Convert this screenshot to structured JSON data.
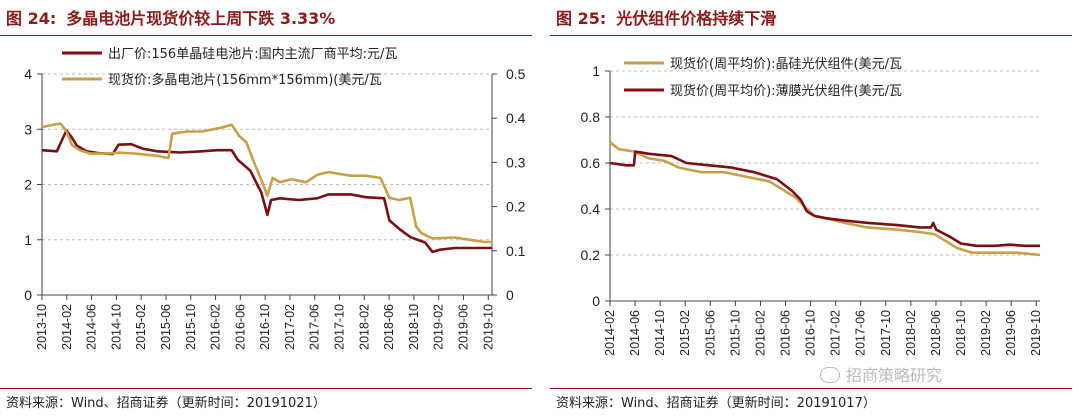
{
  "chart_data": [
    {
      "type": "line",
      "title_number": "图 24:",
      "title": "多晶电池片现货价较上周下跌 3.33%",
      "source": "资料来源：Wind、招商证券（更新时间：20191021）",
      "y_left": {
        "lim": [
          0,
          4
        ],
        "ticks": [
          "0",
          "1",
          "2",
          "3",
          "4"
        ]
      },
      "y_right": {
        "lim": [
          0,
          0.5
        ],
        "ticks": [
          "0",
          "0.1",
          "0.2",
          "0.3",
          "0.4",
          "0.5"
        ]
      },
      "x_ticks": [
        "2013-10",
        "2014-02",
        "2014-06",
        "2014-10",
        "2015-02",
        "2015-06",
        "2015-10",
        "2016-02",
        "2016-06",
        "2016-10",
        "2017-02",
        "2017-06",
        "2017-10",
        "2018-02",
        "2018-06",
        "2018-10",
        "2019-02",
        "2019-06",
        "2019-10"
      ],
      "x_range": [
        2013.75,
        2019.8
      ],
      "grid": "horizontal dashed",
      "series": [
        {
          "name": "出厂价:156单晶硅电池片:国内主流厂商平均:元/瓦",
          "axis": "left",
          "color": "#7b0d13",
          "points": [
            [
              2013.75,
              2.62
            ],
            [
              2013.95,
              2.6
            ],
            [
              2014.0,
              2.75
            ],
            [
              2014.08,
              2.98
            ],
            [
              2014.15,
              2.85
            ],
            [
              2014.22,
              2.7
            ],
            [
              2014.35,
              2.6
            ],
            [
              2014.5,
              2.57
            ],
            [
              2014.7,
              2.55
            ],
            [
              2014.78,
              2.72
            ],
            [
              2014.95,
              2.73
            ],
            [
              2015.1,
              2.65
            ],
            [
              2015.3,
              2.6
            ],
            [
              2015.6,
              2.58
            ],
            [
              2015.9,
              2.6
            ],
            [
              2016.1,
              2.62
            ],
            [
              2016.3,
              2.62
            ],
            [
              2016.38,
              2.45
            ],
            [
              2016.55,
              2.25
            ],
            [
              2016.7,
              1.85
            ],
            [
              2016.78,
              1.45
            ],
            [
              2016.83,
              1.72
            ],
            [
              2016.95,
              1.75
            ],
            [
              2017.2,
              1.72
            ],
            [
              2017.45,
              1.75
            ],
            [
              2017.6,
              1.82
            ],
            [
              2017.9,
              1.82
            ],
            [
              2018.1,
              1.77
            ],
            [
              2018.35,
              1.75
            ],
            [
              2018.42,
              1.35
            ],
            [
              2018.55,
              1.2
            ],
            [
              2018.7,
              1.05
            ],
            [
              2018.8,
              1.0
            ],
            [
              2018.9,
              0.95
            ],
            [
              2019.0,
              0.78
            ],
            [
              2019.1,
              0.82
            ],
            [
              2019.3,
              0.85
            ],
            [
              2019.5,
              0.85
            ],
            [
              2019.8,
              0.85
            ]
          ]
        },
        {
          "name": "现货价:多晶电池片(156mm*156mm)(美元/瓦",
          "axis": "right",
          "color": "#c9a04a",
          "points": [
            [
              2013.75,
              0.38
            ],
            [
              2013.9,
              0.385
            ],
            [
              2014.0,
              0.388
            ],
            [
              2014.08,
              0.37
            ],
            [
              2014.15,
              0.34
            ],
            [
              2014.25,
              0.328
            ],
            [
              2014.4,
              0.32
            ],
            [
              2014.6,
              0.32
            ],
            [
              2014.8,
              0.322
            ],
            [
              2015.0,
              0.32
            ],
            [
              2015.3,
              0.315
            ],
            [
              2015.45,
              0.31
            ],
            [
              2015.5,
              0.365
            ],
            [
              2015.7,
              0.37
            ],
            [
              2015.9,
              0.37
            ],
            [
              2016.15,
              0.378
            ],
            [
              2016.3,
              0.385
            ],
            [
              2016.4,
              0.36
            ],
            [
              2016.5,
              0.345
            ],
            [
              2016.6,
              0.3
            ],
            [
              2016.7,
              0.26
            ],
            [
              2016.78,
              0.225
            ],
            [
              2016.85,
              0.265
            ],
            [
              2016.95,
              0.255
            ],
            [
              2017.1,
              0.262
            ],
            [
              2017.3,
              0.255
            ],
            [
              2017.45,
              0.272
            ],
            [
              2017.6,
              0.278
            ],
            [
              2017.9,
              0.27
            ],
            [
              2018.1,
              0.27
            ],
            [
              2018.3,
              0.265
            ],
            [
              2018.42,
              0.22
            ],
            [
              2018.55,
              0.215
            ],
            [
              2018.7,
              0.22
            ],
            [
              2018.78,
              0.155
            ],
            [
              2018.85,
              0.14
            ],
            [
              2019.0,
              0.128
            ],
            [
              2019.3,
              0.13
            ],
            [
              2019.5,
              0.125
            ],
            [
              2019.7,
              0.12
            ],
            [
              2019.8,
              0.12
            ]
          ]
        }
      ]
    },
    {
      "type": "line",
      "title_number": "图 25:",
      "title": "光伏组件价格持续下滑",
      "source": "资料来源：Wind、招商证券（更新时间：20191017）",
      "y_left": {
        "lim": [
          0,
          1
        ],
        "ticks": [
          "0",
          "0.2",
          "0.4",
          "0.6",
          "0.8",
          "1"
        ]
      },
      "x_ticks": [
        "2014-02",
        "2014-06",
        "2014-10",
        "2015-02",
        "2015-06",
        "2015-10",
        "2016-02",
        "2016-06",
        "2016-10",
        "2017-02",
        "2017-06",
        "2017-10",
        "2018-02",
        "2018-06",
        "2018-10",
        "2019-02",
        "2019-06",
        "2019-10"
      ],
      "x_range": [
        2014.083,
        2019.8
      ],
      "grid": "horizontal dashed",
      "series": [
        {
          "name": "现货价(周平均价):晶硅光伏组件(美元/瓦",
          "axis": "left",
          "color": "#c9a04a",
          "points": [
            [
              2014.083,
              0.69
            ],
            [
              2014.2,
              0.66
            ],
            [
              2014.4,
              0.65
            ],
            [
              2014.6,
              0.62
            ],
            [
              2014.8,
              0.61
            ],
            [
              2015.0,
              0.58
            ],
            [
              2015.3,
              0.56
            ],
            [
              2015.6,
              0.56
            ],
            [
              2015.9,
              0.54
            ],
            [
              2016.2,
              0.52
            ],
            [
              2016.4,
              0.48
            ],
            [
              2016.55,
              0.45
            ],
            [
              2016.7,
              0.4
            ],
            [
              2016.8,
              0.37
            ],
            [
              2016.95,
              0.36
            ],
            [
              2017.2,
              0.34
            ],
            [
              2017.5,
              0.32
            ],
            [
              2017.9,
              0.31
            ],
            [
              2018.2,
              0.3
            ],
            [
              2018.4,
              0.29
            ],
            [
              2018.55,
              0.26
            ],
            [
              2018.7,
              0.23
            ],
            [
              2018.9,
              0.21
            ],
            [
              2019.2,
              0.21
            ],
            [
              2019.5,
              0.21
            ],
            [
              2019.8,
              0.2
            ]
          ]
        },
        {
          "name": "现货价(周平均价):薄膜光伏组件(美元/瓦",
          "axis": "left",
          "color": "#7b0d13",
          "points": [
            [
              2014.083,
              0.6
            ],
            [
              2014.3,
              0.59
            ],
            [
              2014.4,
              0.59
            ],
            [
              2014.42,
              0.65
            ],
            [
              2014.6,
              0.64
            ],
            [
              2014.9,
              0.63
            ],
            [
              2015.1,
              0.6
            ],
            [
              2015.4,
              0.59
            ],
            [
              2015.7,
              0.58
            ],
            [
              2016.0,
              0.56
            ],
            [
              2016.3,
              0.53
            ],
            [
              2016.5,
              0.48
            ],
            [
              2016.62,
              0.44
            ],
            [
              2016.7,
              0.39
            ],
            [
              2016.8,
              0.37
            ],
            [
              2016.95,
              0.36
            ],
            [
              2017.2,
              0.35
            ],
            [
              2017.5,
              0.34
            ],
            [
              2017.9,
              0.33
            ],
            [
              2018.2,
              0.32
            ],
            [
              2018.35,
              0.32
            ],
            [
              2018.38,
              0.34
            ],
            [
              2018.42,
              0.31
            ],
            [
              2018.6,
              0.28
            ],
            [
              2018.75,
              0.25
            ],
            [
              2018.95,
              0.24
            ],
            [
              2019.2,
              0.24
            ],
            [
              2019.4,
              0.245
            ],
            [
              2019.6,
              0.24
            ],
            [
              2019.8,
              0.24
            ]
          ]
        }
      ]
    }
  ],
  "watermark": "招商策略研究"
}
